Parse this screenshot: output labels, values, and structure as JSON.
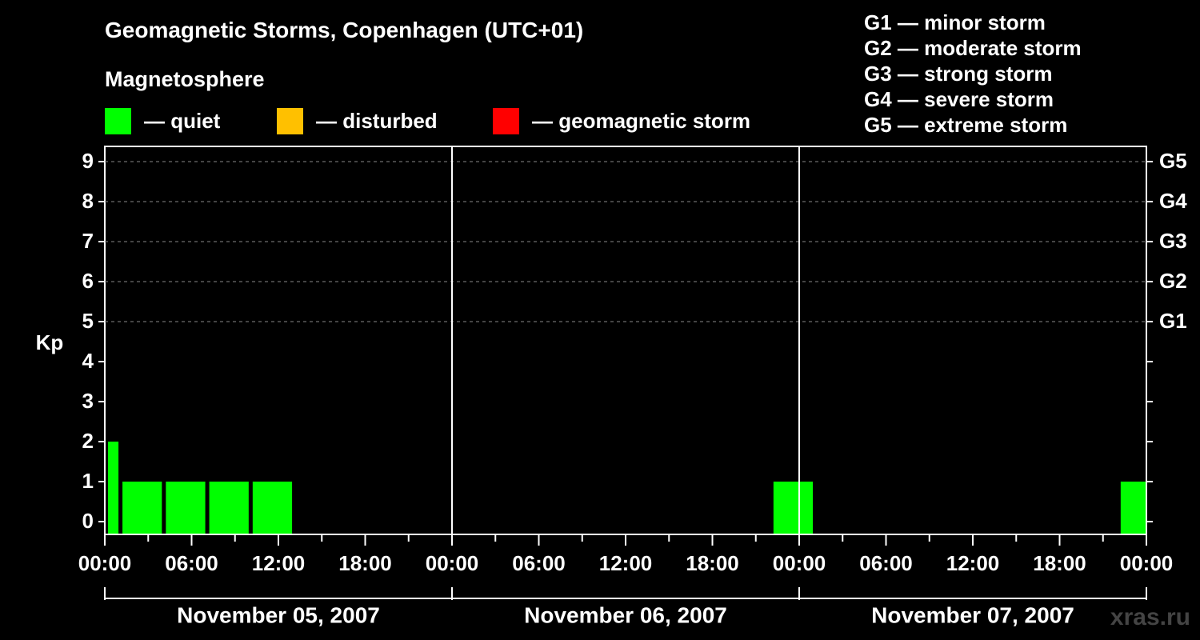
{
  "header": {
    "title": "Geomagnetic Storms, Copenhagen (UTC+01)",
    "subtitle": "Magnetosphere"
  },
  "legend": [
    {
      "label": "— quiet",
      "color": "#00ff00"
    },
    {
      "label": "— disturbed",
      "color": "#ffc000"
    },
    {
      "label": "— geomagnetic storm",
      "color": "#ff0000"
    }
  ],
  "storm_scale": [
    "G1 — minor storm",
    "G2 — moderate storm",
    "G3 — strong storm",
    "G4 — severe storm",
    "G5 — extreme storm"
  ],
  "watermark": "xras.ru",
  "chart_data": {
    "type": "bar",
    "ylabel": "Kp",
    "ylim": [
      0,
      9
    ],
    "y_ticks": [
      "0",
      "1",
      "2",
      "3",
      "4",
      "5",
      "6",
      "7",
      "8",
      "9"
    ],
    "right_ticks": [
      {
        "kp": 5,
        "label": "G1"
      },
      {
        "kp": 6,
        "label": "G2"
      },
      {
        "kp": 7,
        "label": "G3"
      },
      {
        "kp": 8,
        "label": "G4"
      },
      {
        "kp": 9,
        "label": "G5"
      }
    ],
    "x_tick_labels": [
      "00:00",
      "06:00",
      "12:00",
      "18:00",
      "00:00",
      "06:00",
      "12:00",
      "18:00",
      "00:00",
      "06:00",
      "12:00",
      "18:00",
      "00:00"
    ],
    "days": [
      "November 05, 2007",
      "November 06, 2007",
      "November 07, 2007"
    ],
    "grid": "dashed horizontal at Kp 5–9",
    "bars": [
      {
        "start_hour": 0,
        "end_hour": 1,
        "kp": 2,
        "color": "#00ff00"
      },
      {
        "start_hour": 1,
        "end_hour": 4,
        "kp": 1,
        "color": "#00ff00"
      },
      {
        "start_hour": 4,
        "end_hour": 7,
        "kp": 1,
        "color": "#00ff00"
      },
      {
        "start_hour": 7,
        "end_hour": 10,
        "kp": 1,
        "color": "#00ff00"
      },
      {
        "start_hour": 10,
        "end_hour": 13,
        "kp": 1,
        "color": "#00ff00"
      },
      {
        "start_hour": 46,
        "end_hour": 49,
        "kp": 1,
        "color": "#00ff00"
      },
      {
        "start_hour": 70,
        "end_hour": 72,
        "kp": 1,
        "color": "#00ff00"
      }
    ]
  }
}
